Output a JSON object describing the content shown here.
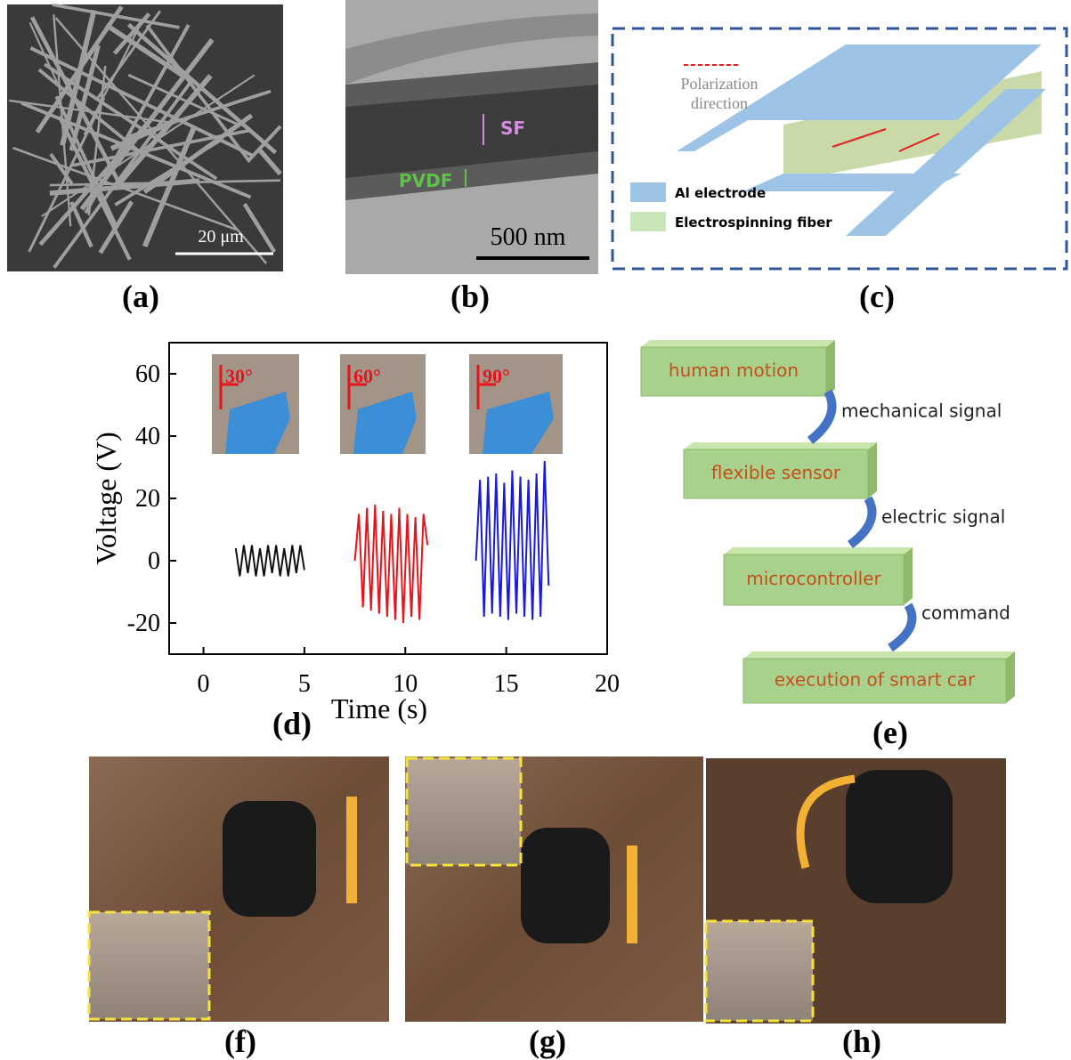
{
  "panels": {
    "a": {
      "label": "(a)",
      "scale_bar": "20 μm"
    },
    "b": {
      "label": "(b)",
      "layer_1": "SF",
      "layer_2": "PVDF",
      "scale_bar": "500 nm"
    },
    "c": {
      "label": "(c)",
      "arrow_caption": [
        "Polarization",
        "direction"
      ],
      "legend": [
        "Al electrode",
        "Electrospinning fiber"
      ]
    },
    "d": {
      "label": "(d)"
    },
    "e": {
      "label": "(e)",
      "nodes": [
        "human motion",
        "flexible sensor",
        "microcontroller",
        "execution of smart car"
      ],
      "edges": [
        "mechanical signal",
        "electric signal",
        "command"
      ]
    },
    "f": {
      "label": "(f)"
    },
    "g": {
      "label": "(g)"
    },
    "h": {
      "label": "(h)"
    }
  },
  "chart_data": {
    "type": "line",
    "x_label": "Time (s)",
    "y_label": "Voltage (V)",
    "annotations": [
      "30°",
      "60°",
      "90°"
    ],
    "xlim": [
      -1.7,
      20
    ],
    "xticks": [
      0,
      5,
      10,
      15,
      20
    ],
    "ylim": [
      -30,
      70
    ],
    "yticks": [
      -20,
      0,
      20,
      40,
      60
    ],
    "series": [
      {
        "color": "#111111",
        "x": [
          1.6,
          1.8,
          2.0,
          2.2,
          2.4,
          2.6,
          2.8,
          3.0,
          3.2,
          3.4,
          3.6,
          3.8,
          4.0,
          4.2,
          4.4,
          4.6,
          4.8,
          5.0
        ],
        "values": [
          4,
          -5,
          5,
          -4,
          5,
          -5,
          4,
          -5,
          5,
          -4,
          5,
          -5,
          4,
          -5,
          5,
          -4,
          5,
          -3
        ]
      },
      {
        "color": "#e8141c",
        "x": [
          7.5,
          7.7,
          7.9,
          8.1,
          8.3,
          8.5,
          8.7,
          8.9,
          9.1,
          9.3,
          9.5,
          9.7,
          9.9,
          10.1,
          10.3,
          10.5,
          10.7,
          10.9,
          11.1
        ],
        "values": [
          0,
          15,
          -15,
          17,
          -16,
          18,
          -17,
          16,
          -18,
          15,
          -19,
          17,
          -20,
          15,
          -18,
          14,
          -19,
          15,
          5
        ]
      },
      {
        "color": "#1a1adb",
        "x": [
          13.5,
          13.7,
          13.9,
          14.1,
          14.3,
          14.5,
          14.7,
          14.9,
          15.1,
          15.3,
          15.5,
          15.7,
          15.9,
          16.1,
          16.3,
          16.5,
          16.7,
          16.9,
          17.1
        ],
        "values": [
          0,
          26,
          -18,
          27,
          -17,
          28,
          -18,
          25,
          -19,
          29,
          -17,
          27,
          -18,
          26,
          -19,
          28,
          -18,
          32,
          -8
        ]
      }
    ]
  }
}
